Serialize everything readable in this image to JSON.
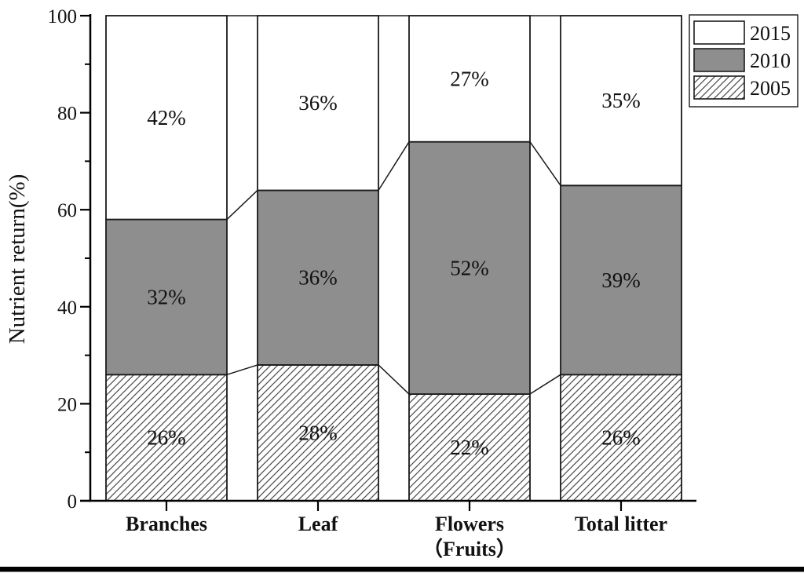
{
  "chart_data": {
    "type": "bar",
    "stacked": true,
    "title": "",
    "ylabel": "Nutrient return(%)",
    "xlabel": "",
    "ylim": [
      0,
      100
    ],
    "yticks_major": [
      0,
      20,
      40,
      60,
      80,
      100
    ],
    "yticks_minor": [
      10,
      30,
      50,
      70,
      90
    ],
    "grid": false,
    "legend_position": "top-right",
    "legend_order": [
      "2015",
      "2010",
      "2005"
    ],
    "categories": [
      {
        "label": "Branches",
        "sublabel": ""
      },
      {
        "label": "Leaf",
        "sublabel": ""
      },
      {
        "label": "Flowers",
        "sublabel": "（Fruits）"
      },
      {
        "label": "Total litter",
        "sublabel": ""
      }
    ],
    "series": [
      {
        "name": "2005",
        "style": "hatch",
        "values": [
          26,
          28,
          22,
          26
        ],
        "labels": [
          "26%",
          "28%",
          "22%",
          "26%"
        ]
      },
      {
        "name": "2010",
        "style": "gray",
        "values": [
          32,
          36,
          52,
          39
        ],
        "labels": [
          "32%",
          "36%",
          "52%",
          "39%"
        ]
      },
      {
        "name": "2015",
        "style": "white",
        "values": [
          42,
          36,
          27,
          35
        ],
        "labels": [
          "42%",
          "36%",
          "27%",
          "35%"
        ]
      }
    ],
    "colors": {
      "gray_fill": "#8e8e8e",
      "white_fill": "#ffffff",
      "axis_line": "#000000",
      "segment_line": "#1a1a1a",
      "hatch_line": "#4a4a4a",
      "text": "#111111",
      "bottom_rule": "#000000"
    }
  }
}
